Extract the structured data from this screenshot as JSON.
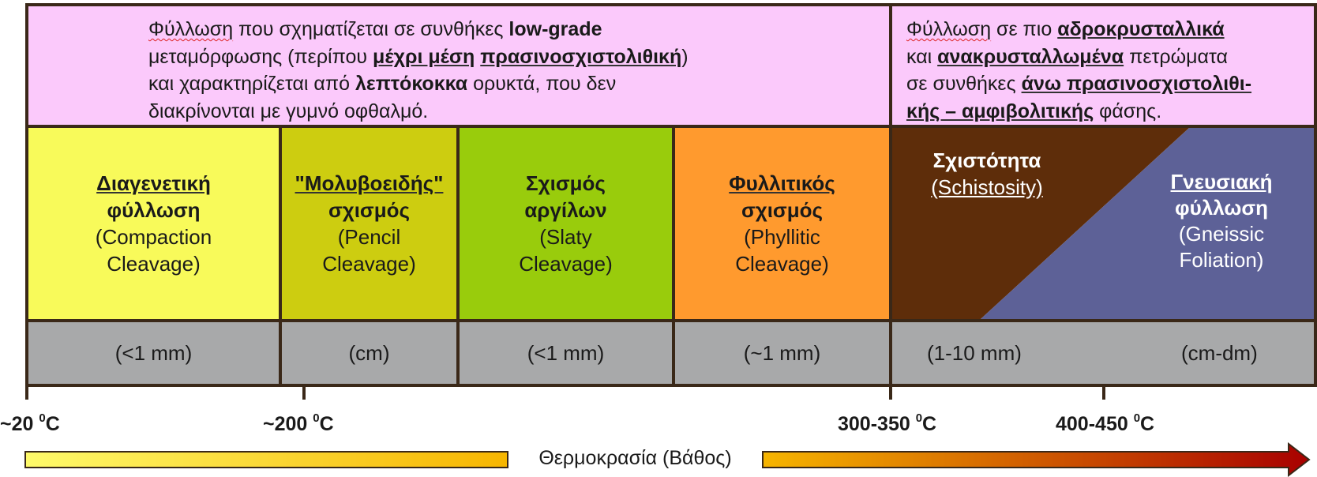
{
  "header": {
    "low_grade": {
      "l1_a": "Φύλλωση",
      "l1_b": " που σχηματίζεται σε συνθήκες ",
      "l1_c": "low-grade",
      "l2_a": "μεταμόρφωσης (περίπου ",
      "l2_b": "μέχρι μέση",
      "l2_c": " ",
      "l2_d": "πρασινοσχιστολιθική",
      "l2_e": ")",
      "l3_a": "και χαρακτηρίζεται από ",
      "l3_b": "λεπτόκοκκα",
      "l3_c": " ορυκτά, που δεν",
      "l4": "διακρίνονται με γυμνό οφθαλμό."
    },
    "high_grade": {
      "l1_a": "Φύλλωση",
      "l1_b": " σε πιο ",
      "l1_c": "αδροκρυσταλλικά",
      "l2_a": "και ",
      "l2_b": "ανακρυσταλλωμένα",
      "l2_c": " πετρώματα",
      "l3_a": "σε συνθήκες ",
      "l3_b": "άνω πρασινοσχιστολιθι-",
      "l4_a": "κής – αμφιβολιτικής",
      "l4_b": " φάσης."
    }
  },
  "cleavages": [
    {
      "title1": "Διαγενετική",
      "title2": "φύλλωση",
      "sub1": "(Compaction",
      "sub2": "Cleavage)",
      "size": "(<1 mm)",
      "color": "#f8fa5a"
    },
    {
      "title1": "\"Μολυβοειδής\"",
      "title2": "σχισμός",
      "sub1": "(Pencil",
      "sub2": "Cleavage)",
      "size": "(cm)",
      "color": "#cdcd10"
    },
    {
      "title1": "Σχισμός",
      "title2": "αργίλων",
      "sub1": "(Slaty",
      "sub2": "Cleavage)",
      "size": "(<1 mm)",
      "color": "#99cc0c"
    },
    {
      "title1": "Φυλλιτικός",
      "title2": "σχισμός",
      "sub1": "(Phyllitic",
      "sub2": "Cleavage)",
      "size": "(~1 mm)",
      "color": "#ff9a2e"
    }
  ],
  "schistosity": {
    "title": "Σχιστότητα",
    "sub": "(Schistosity)",
    "size": "(1-10 mm)",
    "color": "#5e2d0a"
  },
  "gneissic": {
    "title1": "Γνευσιακή",
    "title2": "φύλλωση",
    "sub1": "(Gneissic",
    "sub2": "Foliation)",
    "size": "(cm-dm)",
    "color": "#5d6197"
  },
  "temperatures": [
    {
      "value": "~20 ",
      "sup": "0",
      "unit": "C"
    },
    {
      "value": "~200 ",
      "sup": "0",
      "unit": "C"
    },
    {
      "value": "300-350 ",
      "sup": "0",
      "unit": "C"
    },
    {
      "value": "400-450 ",
      "sup": "0",
      "unit": "C"
    }
  ],
  "arrow_label": "Θερμοκρασία (Βάθος)",
  "arrow_colors": {
    "start": "#fffa6a",
    "mid": "#f7b500",
    "end": "#a80000"
  }
}
